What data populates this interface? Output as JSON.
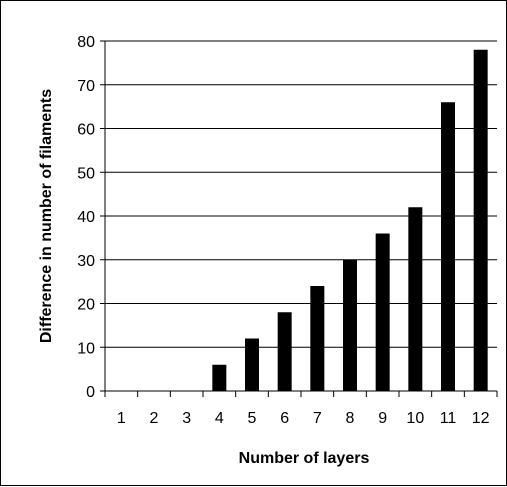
{
  "chart_data": {
    "type": "bar",
    "title": "",
    "xlabel": "Number of layers",
    "ylabel": "Difference in number of filaments",
    "categories": [
      "1",
      "2",
      "3",
      "4",
      "5",
      "6",
      "7",
      "8",
      "9",
      "10",
      "11",
      "12"
    ],
    "values": [
      0,
      0,
      0,
      6,
      12,
      18,
      24,
      30,
      36,
      42,
      66,
      78
    ],
    "ylim": [
      0,
      80
    ],
    "yticks": [
      0,
      10,
      20,
      30,
      40,
      50,
      60,
      70,
      80
    ],
    "grid": true,
    "legend": "none",
    "bar_color": "#000000",
    "grid_color": "#000000"
  }
}
